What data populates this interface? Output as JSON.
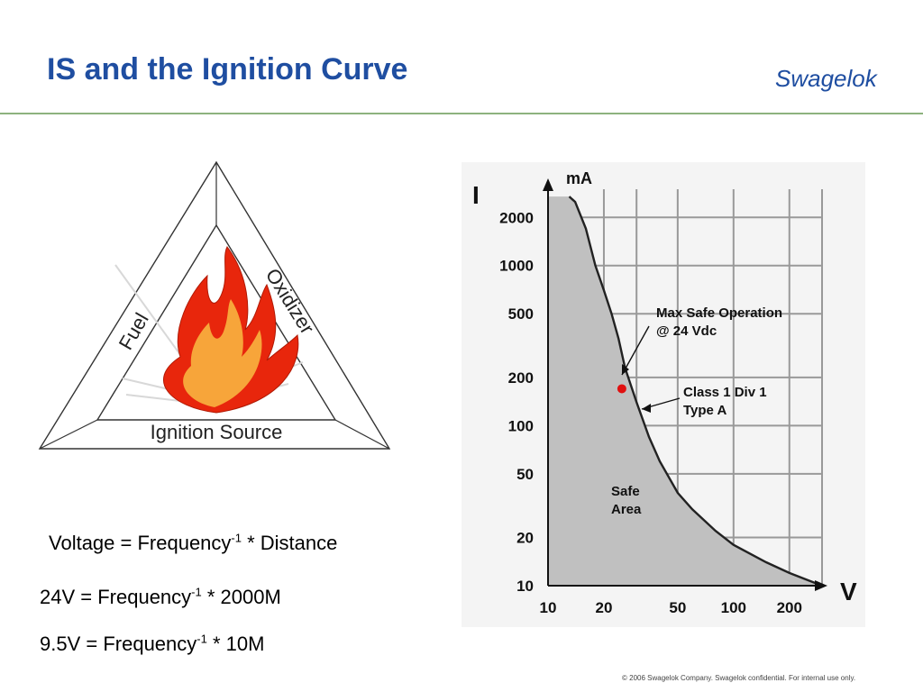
{
  "slide": {
    "title": "IS and the Ignition Curve",
    "logo_text": "Swagelok",
    "footer": "© 2006 Swagelok Company. Swagelok confidential.  For internal use only."
  },
  "fire_triangle": {
    "left_label": "Fuel",
    "right_label": "Oxidizer",
    "bottom_label": "Ignition Source"
  },
  "equations": [
    {
      "lhs": "Voltage = Frequency",
      "exp": "-1",
      "rhs": " * Distance"
    },
    {
      "lhs": "24V = Frequency",
      "exp": "-1",
      "rhs": " * 2000M"
    },
    {
      "lhs": "9.5V = Frequency",
      "exp": "-1",
      "rhs": " * 10M"
    }
  ],
  "chart_data": {
    "type": "line",
    "x_axis_label": "V",
    "y_axis_label": "I",
    "y_unit": "mA",
    "x_scale": "log",
    "y_scale": "log",
    "x_ticks": [
      "10",
      "20",
      "50",
      "100",
      "200"
    ],
    "y_ticks": [
      "2000",
      "1000",
      "500",
      "200",
      "100",
      "50",
      "20",
      "10"
    ],
    "xlim": [
      10,
      300
    ],
    "ylim": [
      10,
      3000
    ],
    "grid": true,
    "series": [
      {
        "name": "Class 1 Div 1 Type A",
        "x": [
          13,
          14,
          16,
          18,
          20,
          22,
          24,
          26,
          30,
          35,
          40,
          50,
          60,
          80,
          100,
          150,
          200,
          300
        ],
        "y": [
          2700,
          2500,
          1700,
          1000,
          700,
          500,
          350,
          230,
          140,
          85,
          60,
          38,
          30,
          22,
          18,
          14,
          12,
          10
        ]
      }
    ],
    "fill_region_label": "Safe Area",
    "marker": {
      "x": 25,
      "y": 170
    },
    "annotations": [
      {
        "text_line1": "Max Safe Operation",
        "text_line2": "@ 24 Vdc"
      },
      {
        "text_line1": "Class 1 Div 1",
        "text_line2": "Type A"
      }
    ]
  },
  "colors": {
    "title": "#1f4ea1",
    "rule": "#8db27e",
    "fill": "#c0c0c0",
    "marker": "#e01010",
    "flame_outer": "#e8260c",
    "flame_inner": "#f7a53a"
  }
}
